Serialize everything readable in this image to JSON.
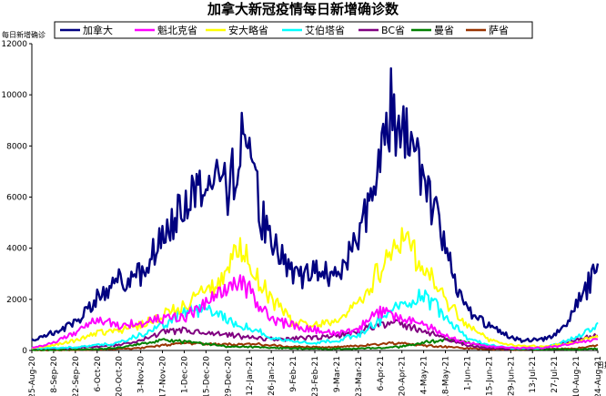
{
  "chart_data": {
    "type": "line",
    "title": "加拿大新冠疫情每日新增确诊数",
    "ylabel": "每日新增确诊",
    "xlabel": "日期",
    "ylim": [
      0,
      12000
    ],
    "yticks": [
      0,
      2000,
      4000,
      6000,
      8000,
      10000,
      12000
    ],
    "xlim": [
      "2020-08-25",
      "2021-08-24"
    ],
    "xticks": [
      "25-Aug-20",
      "8-Sep-20",
      "22-Sep-20",
      "6-Oct-20",
      "20-Oct-20",
      "3-Nov-20",
      "17-Nov-20",
      "1-Dec-20",
      "15-Dec-20",
      "29-Dec-20",
      "12-Jan-21",
      "26-Jan-21",
      "9-Feb-21",
      "23-Feb-21",
      "9-Mar-21",
      "23-Mar-21",
      "6-Apr-21",
      "20-Apr-21",
      "4-May-21",
      "18-May-21",
      "1-Jun-21",
      "15-Jun-21",
      "29-Jun-21",
      "13-Jul-21",
      "27-Jul-21",
      "10-Aug-21",
      "24-Aug-21"
    ],
    "grid": false,
    "legend_position": "top",
    "series": [
      {
        "name": "加拿大",
        "color": "#000080",
        "x": [
          "2020-08-25",
          "2020-09-08",
          "2020-09-22",
          "2020-10-06",
          "2020-10-20",
          "2020-11-03",
          "2020-11-17",
          "2020-12-01",
          "2020-12-15",
          "2020-12-22",
          "2020-12-29",
          "2021-01-05",
          "2021-01-09",
          "2021-01-12",
          "2021-01-19",
          "2021-01-26",
          "2021-02-02",
          "2021-02-09",
          "2021-02-16",
          "2021-02-23",
          "2021-03-02",
          "2021-03-09",
          "2021-03-16",
          "2021-03-23",
          "2021-03-30",
          "2021-04-06",
          "2021-04-10",
          "2021-04-13",
          "2021-04-17",
          "2021-04-20",
          "2021-04-27",
          "2021-05-04",
          "2021-05-11",
          "2021-05-18",
          "2021-05-25",
          "2021-06-01",
          "2021-06-08",
          "2021-06-15",
          "2021-06-22",
          "2021-06-29",
          "2021-07-06",
          "2021-07-13",
          "2021-07-20",
          "2021-07-27",
          "2021-08-03",
          "2021-08-10",
          "2021-08-17",
          "2021-08-24"
        ],
        "values": [
          400,
          700,
          1100,
          2000,
          2700,
          3000,
          4400,
          5800,
          6600,
          6800,
          6000,
          7800,
          9100,
          8000,
          5500,
          4300,
          3500,
          3000,
          2900,
          3000,
          3100,
          3000,
          3500,
          4500,
          5800,
          7500,
          9000,
          9500,
          8200,
          8500,
          7500,
          7000,
          5500,
          4000,
          2500,
          1600,
          1200,
          1000,
          700,
          500,
          400,
          400,
          450,
          600,
          900,
          1800,
          2500,
          3200
        ]
      },
      {
        "name": "魁北克省",
        "color": "#ff00ff",
        "x": [
          "2020-08-25",
          "2020-09-08",
          "2020-09-22",
          "2020-10-06",
          "2020-10-20",
          "2020-11-03",
          "2020-11-17",
          "2020-12-01",
          "2020-12-15",
          "2020-12-29",
          "2021-01-05",
          "2021-01-12",
          "2021-01-26",
          "2021-02-09",
          "2021-02-23",
          "2021-03-09",
          "2021-03-23",
          "2021-04-06",
          "2021-04-20",
          "2021-05-04",
          "2021-05-18",
          "2021-06-01",
          "2021-06-15",
          "2021-07-01",
          "2021-07-20",
          "2021-08-10",
          "2021-08-24"
        ],
        "values": [
          100,
          300,
          700,
          1200,
          1000,
          1100,
          1200,
          1300,
          1800,
          2400,
          2800,
          2300,
          1200,
          1000,
          800,
          700,
          900,
          1500,
          1300,
          1000,
          600,
          300,
          150,
          100,
          100,
          300,
          500
        ]
      },
      {
        "name": "安大略省",
        "color": "#ffff00",
        "x": [
          "2020-08-25",
          "2020-09-08",
          "2020-09-22",
          "2020-10-06",
          "2020-10-20",
          "2020-11-03",
          "2020-11-17",
          "2020-12-01",
          "2020-12-15",
          "2020-12-29",
          "2021-01-05",
          "2021-01-12",
          "2021-01-26",
          "2021-02-09",
          "2021-02-23",
          "2021-03-09",
          "2021-03-23",
          "2021-04-06",
          "2021-04-20",
          "2021-05-04",
          "2021-05-18",
          "2021-06-01",
          "2021-06-15",
          "2021-07-01",
          "2021-07-20",
          "2021-08-10",
          "2021-08-24"
        ],
        "values": [
          100,
          200,
          400,
          700,
          800,
          1000,
          1400,
          1800,
          2300,
          3000,
          4000,
          3300,
          2000,
          1100,
          1000,
          1200,
          1800,
          3200,
          4500,
          3200,
          2000,
          1000,
          400,
          200,
          150,
          300,
          600
        ]
      },
      {
        "name": "艾伯塔省",
        "color": "#00ffff",
        "x": [
          "2020-08-25",
          "2020-09-22",
          "2020-10-20",
          "2020-11-03",
          "2020-11-17",
          "2020-12-01",
          "2020-12-15",
          "2020-12-29",
          "2021-01-12",
          "2021-01-26",
          "2021-02-09",
          "2021-02-23",
          "2021-03-09",
          "2021-03-23",
          "2021-04-06",
          "2021-04-20",
          "2021-05-04",
          "2021-05-18",
          "2021-06-01",
          "2021-06-15",
          "2021-07-01",
          "2021-07-20",
          "2021-08-10",
          "2021-08-24"
        ],
        "values": [
          80,
          120,
          300,
          600,
          1000,
          1500,
          1600,
          1200,
          900,
          500,
          350,
          300,
          400,
          600,
          1200,
          1800,
          2200,
          1400,
          500,
          200,
          80,
          100,
          500,
          1000
        ]
      },
      {
        "name": "BC省",
        "color": "#800080",
        "x": [
          "2020-08-25",
          "2020-09-22",
          "2020-10-20",
          "2020-11-03",
          "2020-11-17",
          "2020-12-01",
          "2020-12-15",
          "2020-12-29",
          "2021-01-12",
          "2021-01-26",
          "2021-02-09",
          "2021-02-23",
          "2021-03-09",
          "2021-03-23",
          "2021-04-06",
          "2021-04-20",
          "2021-05-04",
          "2021-05-18",
          "2021-06-01",
          "2021-06-15",
          "2021-07-01",
          "2021-07-20",
          "2021-08-10",
          "2021-08-24"
        ],
        "values": [
          80,
          100,
          200,
          400,
          700,
          800,
          650,
          600,
          500,
          450,
          450,
          500,
          550,
          750,
          1100,
          1000,
          800,
          450,
          200,
          100,
          50,
          100,
          400,
          600
        ]
      },
      {
        "name": "曼省",
        "color": "#008000",
        "x": [
          "2020-08-25",
          "2020-10-06",
          "2020-10-20",
          "2020-11-03",
          "2020-11-17",
          "2020-12-01",
          "2020-12-15",
          "2020-12-29",
          "2021-01-12",
          "2021-02-09",
          "2021-03-09",
          "2021-04-06",
          "2021-04-20",
          "2021-05-04",
          "2021-05-18",
          "2021-06-01",
          "2021-06-15",
          "2021-07-01",
          "2021-08-10",
          "2021-08-24"
        ],
        "values": [
          20,
          50,
          120,
          250,
          400,
          350,
          250,
          150,
          150,
          80,
          60,
          100,
          150,
          300,
          450,
          300,
          150,
          50,
          40,
          60
        ]
      },
      {
        "name": "萨省",
        "color": "#993300",
        "x": [
          "2020-08-25",
          "2020-10-06",
          "2020-11-03",
          "2020-11-17",
          "2020-12-01",
          "2020-12-15",
          "2020-12-29",
          "2021-01-12",
          "2021-02-09",
          "2021-03-09",
          "2021-04-06",
          "2021-04-20",
          "2021-05-04",
          "2021-05-18",
          "2021-06-01",
          "2021-07-01",
          "2021-08-10",
          "2021-08-24"
        ],
        "values": [
          10,
          30,
          100,
          200,
          300,
          250,
          250,
          250,
          150,
          120,
          250,
          300,
          200,
          150,
          80,
          30,
          80,
          200
        ]
      }
    ]
  }
}
